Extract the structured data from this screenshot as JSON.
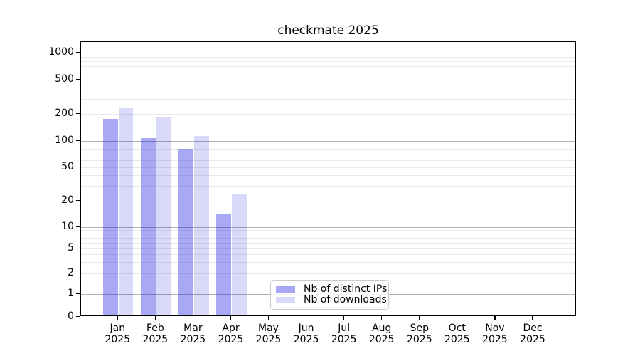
{
  "title": "checkmate 2025",
  "chart_data": {
    "type": "bar",
    "title": "checkmate 2025",
    "categories": [
      "Jan",
      "Feb",
      "Mar",
      "Apr",
      "May",
      "Jun",
      "Jul",
      "Aug",
      "Sep",
      "Oct",
      "Nov",
      "Dec"
    ],
    "year_label": "2025",
    "series": [
      {
        "name": "Nb of distinct IPs",
        "values": [
          176,
          107,
          80,
          14,
          0,
          0,
          0,
          0,
          0,
          0,
          0,
          0
        ],
        "color": "#a6a6f4",
        "fill": "#2020E463"
      },
      {
        "name": "Nb of downloads",
        "values": [
          233,
          182,
          112,
          24,
          0,
          0,
          0,
          0,
          0,
          0,
          0,
          0
        ],
        "color": "#dadaf9",
        "fill": "#2020E42B"
      }
    ],
    "yscale": "symlog",
    "yticks": [
      0,
      1,
      2,
      5,
      10,
      20,
      50,
      100,
      200,
      500,
      1000
    ],
    "ylim": [
      0,
      1365
    ],
    "xlabel": "",
    "ylabel": "",
    "grid": true,
    "legend_position": "lower center, inside axes"
  },
  "colors": {
    "background": "#ffffff",
    "spine": "#000000",
    "text": "#000000",
    "grid_major": "#b0b0b0",
    "grid_minor": "#e9e9e9",
    "legend_border": "#cccccc"
  }
}
